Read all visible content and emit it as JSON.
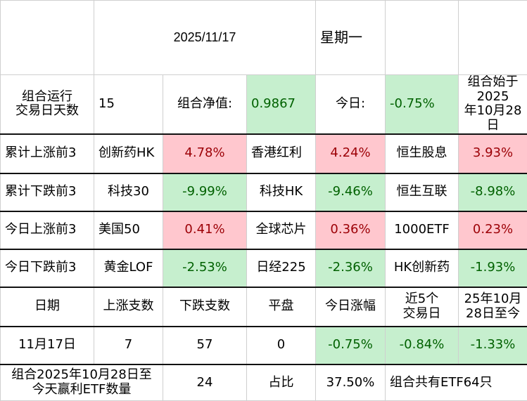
{
  "header": {
    "date": "2025/11/17",
    "weekday": "星期一"
  },
  "summary": {
    "days_label": "组合运行交易日天数",
    "days_label_l1": "组合运行",
    "days_label_l2": "交易日天数",
    "days_value": "15",
    "nav_label": "组合净值:",
    "nav_value": "0.9867",
    "today_label": "今日:",
    "today_value": "-0.75%",
    "start_l1": "组合始于2025",
    "start_l2": "年10月28日"
  },
  "rankings": [
    {
      "label": "累计上涨前3",
      "tone": "red",
      "items": [
        {
          "name": "创新药HK",
          "value": "4.78%"
        },
        {
          "name": "香港红利",
          "value": "4.24%"
        },
        {
          "name": "恒生股息",
          "value": "3.93%"
        }
      ]
    },
    {
      "label": "累计下跌前3",
      "tone": "green",
      "items": [
        {
          "name": "科技30",
          "value": "-9.99%"
        },
        {
          "name": "科技HK",
          "value": "-9.46%"
        },
        {
          "name": "恒生互联",
          "value": "-8.98%"
        }
      ]
    },
    {
      "label": "今日上涨前3",
      "tone": "red",
      "items": [
        {
          "name": "美国50",
          "value": "0.41%"
        },
        {
          "name": "全球芯片",
          "value": "0.36%"
        },
        {
          "name": "1000ETF",
          "value": "0.23%"
        }
      ]
    },
    {
      "label": "今日下跌前3",
      "tone": "green",
      "items": [
        {
          "name": "黄金LOF",
          "value": "-2.53%"
        },
        {
          "name": "日经225",
          "value": "-2.36%"
        },
        {
          "name": "HK创新药",
          "value": "-1.93%"
        }
      ]
    }
  ],
  "stats": {
    "headers": {
      "date": "日期",
      "up": "上涨支数",
      "down": "下跌支数",
      "flat": "平盘",
      "today": "今日涨幅",
      "last5_l1": "近5个",
      "last5_l2": "交易日",
      "since_l1": "25年10月",
      "since_l2": "28日至今"
    },
    "row": {
      "date": "11月17日",
      "up": "7",
      "down": "57",
      "flat": "0",
      "today": "-0.75%",
      "last5": "-0.84%",
      "since": "-1.33%"
    }
  },
  "footer": {
    "profit_label_l1": "组合2025年10月28日至",
    "profit_label_l2": "今天赢利ETF数量",
    "profit_count": "24",
    "ratio_label": "占比",
    "ratio_value": "37.50%",
    "total": "组合共有ETF64只"
  },
  "colors": {
    "green_bg": "#c6efce",
    "green_text": "#006100",
    "red_bg": "#ffc7ce",
    "red_text": "#9c0006"
  }
}
